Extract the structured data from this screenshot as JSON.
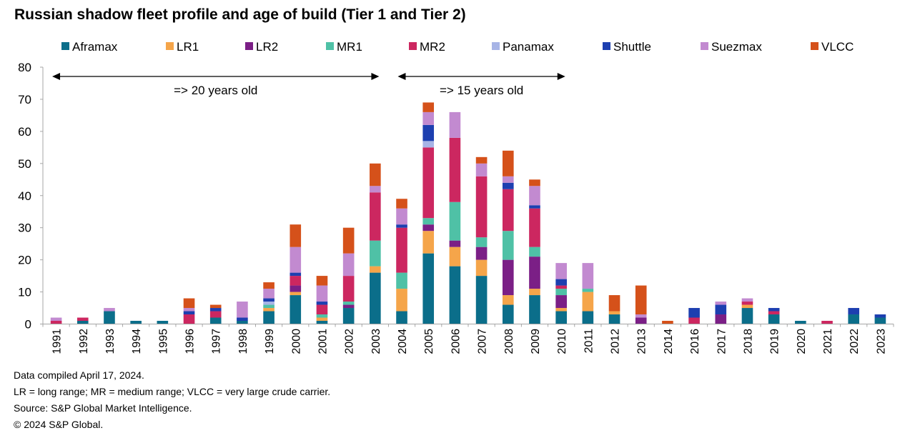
{
  "title": "Russian shadow fleet profile and age of build (Tier 1 and Tier 2)",
  "chart_data": {
    "type": "bar",
    "stacked": true,
    "title": "Russian shadow fleet profile and age of build (Tier 1 and Tier 2)",
    "xlabel": "",
    "ylabel": "",
    "ylim": [
      0,
      80
    ],
    "yticks": [
      0,
      10,
      20,
      30,
      40,
      50,
      60,
      70,
      80
    ],
    "grid": false,
    "legend_position": "top",
    "categories": [
      "1991",
      "1992",
      "1993",
      "1994",
      "1995",
      "1996",
      "1997",
      "1998",
      "1999",
      "2000",
      "2001",
      "2002",
      "2003",
      "2004",
      "2005",
      "2006",
      "2007",
      "2008",
      "2009",
      "2010",
      "2011",
      "2012",
      "2013",
      "2014",
      "2016",
      "2017",
      "2018",
      "2019",
      "2020",
      "2021",
      "2022",
      "2023"
    ],
    "series": [
      {
        "name": "Aframax",
        "color": "#0b6e8a",
        "values": [
          0,
          1,
          4,
          1,
          1,
          0,
          2,
          1,
          4,
          9,
          1,
          5,
          16,
          4,
          22,
          18,
          15,
          6,
          9,
          4,
          4,
          3,
          0,
          0,
          0,
          0,
          5,
          3,
          1,
          0,
          3,
          2
        ]
      },
      {
        "name": "LR1",
        "color": "#f5a54a",
        "values": [
          0,
          0,
          0,
          0,
          0,
          0,
          0,
          0,
          1,
          1,
          1,
          0,
          2,
          7,
          7,
          6,
          5,
          3,
          2,
          1,
          6,
          1,
          0,
          0,
          0,
          0,
          1,
          0,
          0,
          0,
          0,
          0
        ]
      },
      {
        "name": "LR2",
        "color": "#7b1f86",
        "values": [
          0,
          0,
          0,
          0,
          0,
          0,
          0,
          0,
          0,
          2,
          0,
          1,
          0,
          0,
          2,
          2,
          4,
          11,
          10,
          4,
          0,
          0,
          2,
          0,
          0,
          3,
          0,
          0,
          0,
          0,
          0,
          0
        ]
      },
      {
        "name": "MR1",
        "color": "#4fc1a6",
        "values": [
          0,
          0,
          0,
          0,
          0,
          0,
          0,
          0,
          1,
          0,
          1,
          1,
          8,
          5,
          2,
          12,
          3,
          9,
          3,
          2,
          1,
          0,
          0,
          0,
          0,
          0,
          0,
          0,
          0,
          0,
          0,
          0
        ]
      },
      {
        "name": "MR2",
        "color": "#cc2760",
        "values": [
          1,
          1,
          0,
          0,
          0,
          3,
          2,
          0,
          0,
          3,
          3,
          8,
          15,
          14,
          22,
          20,
          19,
          13,
          12,
          1,
          0,
          0,
          0,
          0,
          2,
          0,
          1,
          1,
          0,
          1,
          0,
          0
        ]
      },
      {
        "name": "Panamax",
        "color": "#a7b4e6",
        "values": [
          0,
          0,
          0,
          0,
          0,
          0,
          0,
          0,
          1,
          0,
          0,
          0,
          0,
          0,
          2,
          0,
          0,
          0,
          0,
          0,
          0,
          0,
          0,
          0,
          0,
          0,
          0,
          0,
          0,
          0,
          0,
          0
        ]
      },
      {
        "name": "Shuttle",
        "color": "#1d3fb0",
        "values": [
          0,
          0,
          0,
          0,
          0,
          1,
          1,
          1,
          1,
          1,
          1,
          0,
          0,
          1,
          5,
          0,
          0,
          2,
          1,
          2,
          0,
          0,
          0,
          0,
          3,
          3,
          0,
          1,
          0,
          0,
          2,
          1
        ]
      },
      {
        "name": "Suezmax",
        "color": "#c28ad0",
        "values": [
          1,
          0,
          1,
          0,
          0,
          1,
          0,
          5,
          3,
          8,
          5,
          7,
          2,
          5,
          4,
          8,
          4,
          2,
          6,
          5,
          8,
          0,
          1,
          0,
          0,
          1,
          1,
          0,
          0,
          0,
          0,
          0
        ]
      },
      {
        "name": "VLCC",
        "color": "#d5511a",
        "values": [
          0,
          0,
          0,
          0,
          0,
          3,
          1,
          0,
          2,
          7,
          3,
          8,
          7,
          3,
          3,
          0,
          2,
          8,
          2,
          0,
          0,
          5,
          9,
          1,
          0,
          0,
          0,
          0,
          0,
          0,
          0,
          0
        ]
      }
    ],
    "annotations": [
      {
        "text": "=> 20 years old",
        "x_from": "1991",
        "x_to": "2003"
      },
      {
        "text": "=> 15 years old",
        "x_from": "2004",
        "x_to": "2010"
      }
    ]
  },
  "notes": [
    "Data compiled April 17, 2024.",
    "LR = long range; MR = medium range; VLCC = very large crude carrier.",
    "Source: S&P Global Market Intelligence.",
    "© 2024 S&P Global."
  ]
}
